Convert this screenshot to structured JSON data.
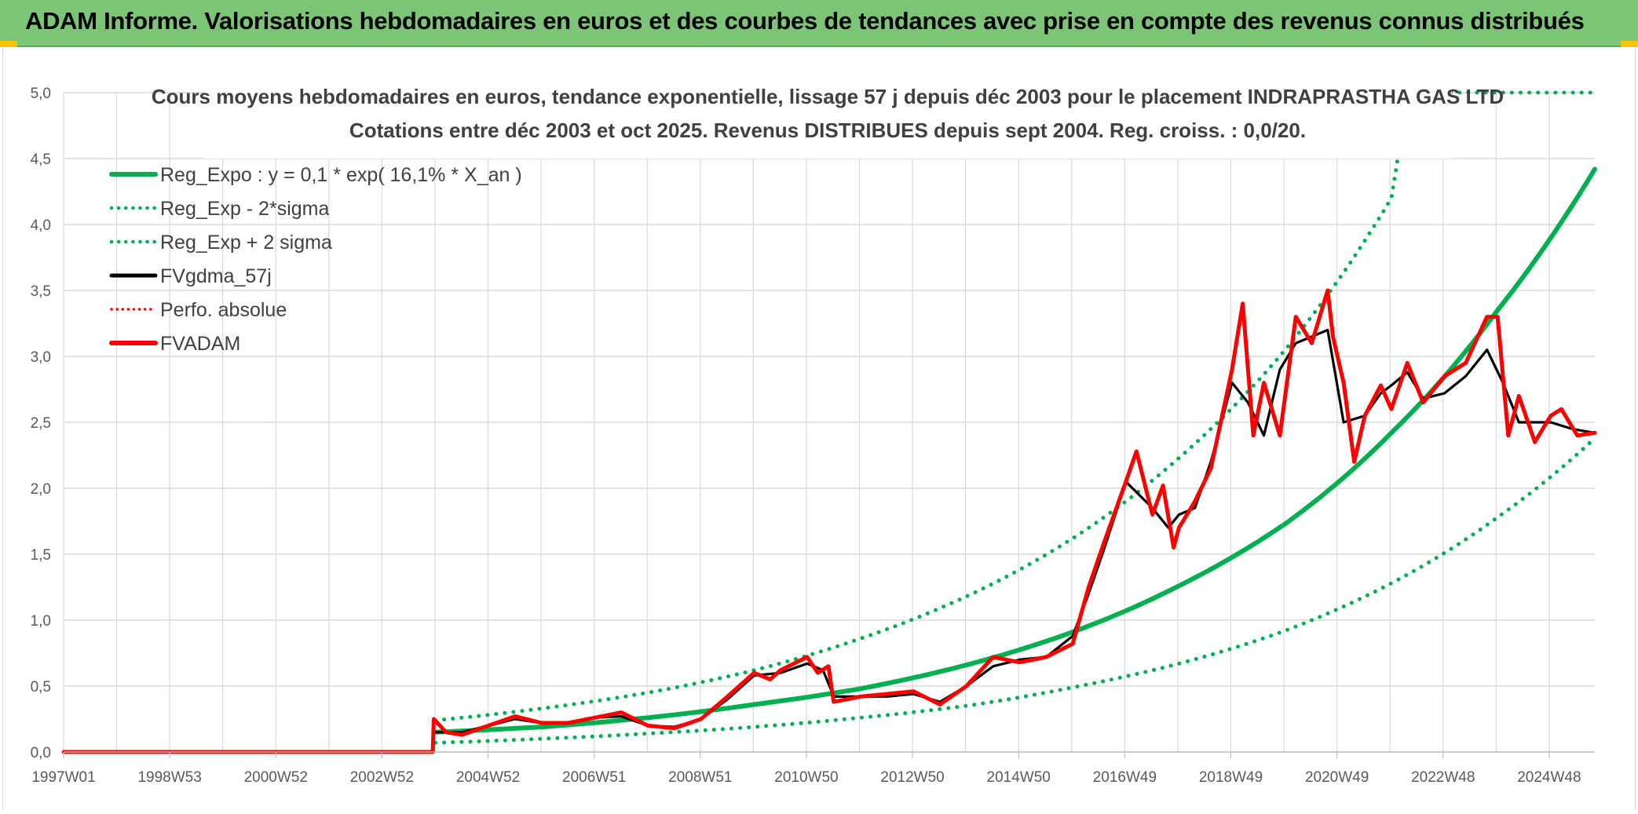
{
  "header": {
    "title": "ADAM Informe. Valorisations hebdomadaires en euros et des courbes de tendances avec prise en compte des revenus connus distribués"
  },
  "colors": {
    "header_bg": "#7cc576",
    "green": "#00b050",
    "red": "#ff0000",
    "black": "#000000",
    "grid": "#d9d9d9"
  },
  "chart_data": {
    "type": "line",
    "title": "Cours moyens hebdomadaires en euros, tendance exponentielle, lissage 57 j depuis déc 2003 pour le placement INDRAPRASTHA GAS LTD",
    "subtitle": "Cotations entre déc 2003 et oct 2025. Revenus DISTRIBUES depuis sept 2004. Reg. croiss. : 0,0/20.",
    "ylim": [
      0,
      5
    ],
    "y_ticks": [
      "0,0",
      "0,5",
      "1,0",
      "1,5",
      "2,0",
      "2,5",
      "3,0",
      "3,5",
      "4,0",
      "4,5",
      "5,0"
    ],
    "x_ticks": [
      "1997W01",
      "1998W53",
      "2000W52",
      "2002W52",
      "2004W52",
      "2006W51",
      "2008W51",
      "2010W50",
      "2012W50",
      "2014W50",
      "2016W49",
      "2018W49",
      "2020W49",
      "2022W48",
      "2024W48"
    ],
    "grid": true,
    "legend_position": "top-left",
    "legend": [
      {
        "label": "Reg_Expo : y = 0,1 * exp( 16,1% *  X_an )",
        "color": "#00b050",
        "style": "solid"
      },
      {
        "label": "Reg_Exp - 2*sigma",
        "color": "#00b050",
        "style": "dotted"
      },
      {
        "label": "Reg_Exp + 2 sigma",
        "color": "#00b050",
        "style": "dotted"
      },
      {
        "label": "FVgdma_57j",
        "color": "#000000",
        "style": "solid"
      },
      {
        "label": "Perfo. absolue",
        "color": "#ff0000",
        "style": "dotted"
      },
      {
        "label": "FVADAM",
        "color": "#ff0000",
        "style": "solid"
      }
    ],
    "series": [
      {
        "name": "Reg_Expo : y = 0,1 * exp( 16,1% *  X_an )",
        "x": [
          2004.0,
          2006.0,
          2008.0,
          2010.0,
          2012.0,
          2014.0,
          2016.0,
          2018.0,
          2020.0,
          2022.0,
          2024.0,
          2025.83
        ],
        "y": [
          0.15,
          0.19,
          0.26,
          0.36,
          0.48,
          0.66,
          0.91,
          1.26,
          1.73,
          2.42,
          3.35,
          4.42
        ]
      },
      {
        "name": "Reg_Exp - 2*sigma",
        "x": [
          2004.0,
          2006.0,
          2008.0,
          2010.0,
          2012.0,
          2014.0,
          2016.0,
          2018.0,
          2020.0,
          2022.0,
          2024.0,
          2025.83
        ],
        "y": [
          0.07,
          0.1,
          0.14,
          0.19,
          0.26,
          0.35,
          0.49,
          0.67,
          0.92,
          1.28,
          1.78,
          2.38
        ]
      },
      {
        "name": "Reg_Exp + 2 sigma",
        "x": [
          2004.0,
          2006.0,
          2008.0,
          2010.0,
          2012.0,
          2014.0,
          2016.0,
          2018.0,
          2020.0,
          2022.0,
          2022.3,
          2025.83
        ],
        "y": [
          0.24,
          0.33,
          0.45,
          0.62,
          0.86,
          1.18,
          1.62,
          2.23,
          3.05,
          4.2,
          5.0,
          5.0
        ]
      },
      {
        "name": "FVgdma_57j",
        "x": [
          2003.95,
          2004.5,
          2005.0,
          2005.5,
          2006.0,
          2006.5,
          2007.0,
          2007.5,
          2008.0,
          2008.5,
          2009.0,
          2009.5,
          2010.0,
          2010.5,
          2011.0,
          2011.3,
          2011.5,
          2012.0,
          2012.5,
          2013.0,
          2013.5,
          2014.0,
          2014.5,
          2015.0,
          2015.5,
          2016.0,
          2016.3,
          2016.6,
          2017.0,
          2017.5,
          2017.8,
          2018.0,
          2018.3,
          2018.6,
          2019.0,
          2019.3,
          2019.6,
          2019.9,
          2020.2,
          2020.5,
          2020.8,
          2021.1,
          2021.5,
          2021.8,
          2022.0,
          2022.3,
          2022.6,
          2023.0,
          2023.4,
          2023.8,
          2024.1,
          2024.4,
          2024.7,
          2025.0,
          2025.4,
          2025.83
        ],
        "y": [
          0.15,
          0.15,
          0.2,
          0.25,
          0.22,
          0.22,
          0.26,
          0.27,
          0.2,
          0.19,
          0.25,
          0.4,
          0.58,
          0.6,
          0.67,
          0.62,
          0.42,
          0.42,
          0.42,
          0.44,
          0.38,
          0.5,
          0.65,
          0.7,
          0.72,
          0.88,
          1.2,
          1.55,
          2.05,
          1.85,
          1.7,
          1.8,
          1.85,
          2.2,
          2.8,
          2.65,
          2.4,
          2.9,
          3.1,
          3.15,
          3.2,
          2.5,
          2.55,
          2.72,
          2.78,
          2.88,
          2.68,
          2.72,
          2.85,
          3.05,
          2.8,
          2.5,
          2.5,
          2.5,
          2.45,
          2.42
        ]
      },
      {
        "name": "FVADAM",
        "x": [
          1997.0,
          2003.95,
          2003.97,
          2004.2,
          2004.5,
          2005.0,
          2005.5,
          2006.0,
          2006.5,
          2007.0,
          2007.5,
          2008.0,
          2008.5,
          2009.0,
          2009.5,
          2010.0,
          2010.3,
          2010.5,
          2011.0,
          2011.2,
          2011.4,
          2011.5,
          2012.0,
          2012.5,
          2013.0,
          2013.5,
          2014.0,
          2014.5,
          2015.0,
          2015.5,
          2016.0,
          2016.3,
          2016.6,
          2017.0,
          2017.2,
          2017.5,
          2017.7,
          2017.9,
          2018.0,
          2018.3,
          2018.6,
          2019.0,
          2019.2,
          2019.4,
          2019.6,
          2019.9,
          2020.2,
          2020.5,
          2020.8,
          2020.9,
          2021.1,
          2021.3,
          2021.5,
          2021.8,
          2022.0,
          2022.3,
          2022.6,
          2023.0,
          2023.4,
          2023.8,
          2024.0,
          2024.2,
          2024.4,
          2024.7,
          2025.0,
          2025.2,
          2025.5,
          2025.83
        ],
        "y": [
          0.0,
          0.0,
          0.25,
          0.15,
          0.13,
          0.2,
          0.27,
          0.22,
          0.22,
          0.26,
          0.3,
          0.2,
          0.18,
          0.25,
          0.42,
          0.6,
          0.55,
          0.62,
          0.72,
          0.6,
          0.65,
          0.38,
          0.42,
          0.44,
          0.46,
          0.36,
          0.5,
          0.72,
          0.68,
          0.72,
          0.82,
          1.25,
          1.6,
          2.05,
          2.28,
          1.8,
          2.02,
          1.55,
          1.7,
          1.9,
          2.15,
          2.9,
          3.4,
          2.4,
          2.8,
          2.4,
          3.3,
          3.1,
          3.5,
          3.15,
          2.8,
          2.2,
          2.55,
          2.78,
          2.6,
          2.95,
          2.65,
          2.85,
          2.95,
          3.3,
          3.3,
          2.4,
          2.7,
          2.35,
          2.55,
          2.6,
          2.4,
          2.42
        ]
      }
    ]
  }
}
